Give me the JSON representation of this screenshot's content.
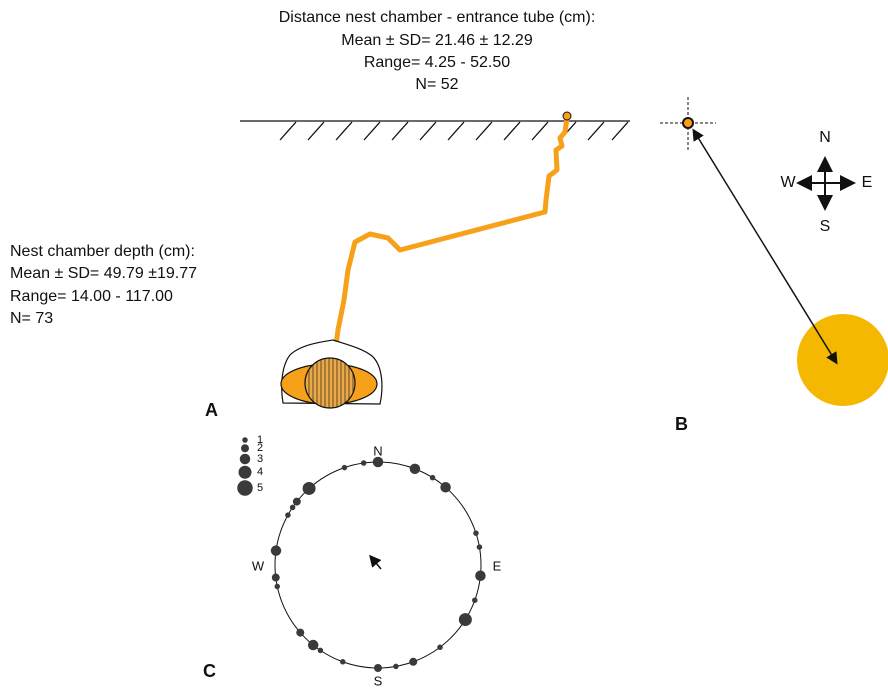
{
  "panel_a": {
    "label": "A",
    "distance_text": [
      "Distance nest chamber - entrance tube (cm):",
      "Mean ± SD= 21.46 ± 12.29",
      "Range= 4.25 - 52.50",
      "N= 52"
    ],
    "depth_text": [
      "Nest chamber depth (cm):",
      "Mean ± SD= 49.79 ±19.77",
      "Range= 14.00 - 117.00",
      "N= 73"
    ]
  },
  "panel_b": {
    "label": "B",
    "compass": {
      "north": "N",
      "south": "S",
      "east": "E",
      "west": "W"
    }
  },
  "panel_c": {
    "label": "C",
    "compass": {
      "north": "N",
      "south": "S",
      "east": "E",
      "west": "W"
    },
    "legend": [
      1,
      2,
      3,
      4,
      5
    ],
    "points": [
      {
        "angle": 0,
        "count": 3
      },
      {
        "angle": 352,
        "count": 1
      },
      {
        "angle": 341,
        "count": 1
      },
      {
        "angle": 318,
        "count": 4
      },
      {
        "angle": 308,
        "count": 2
      },
      {
        "angle": 304,
        "count": 1
      },
      {
        "angle": 299,
        "count": 1
      },
      {
        "angle": 278,
        "count": 3
      },
      {
        "angle": 263,
        "count": 2
      },
      {
        "angle": 258,
        "count": 1
      },
      {
        "angle": 229,
        "count": 2
      },
      {
        "angle": 219,
        "count": 3
      },
      {
        "angle": 214,
        "count": 1
      },
      {
        "angle": 200,
        "count": 1
      },
      {
        "angle": 180,
        "count": 2
      },
      {
        "angle": 170,
        "count": 1
      },
      {
        "angle": 160,
        "count": 2
      },
      {
        "angle": 143,
        "count": 1
      },
      {
        "angle": 122,
        "count": 4
      },
      {
        "angle": 110,
        "count": 1
      },
      {
        "angle": 96,
        "count": 3
      },
      {
        "angle": 80,
        "count": 1
      },
      {
        "angle": 72,
        "count": 1
      },
      {
        "angle": 41,
        "count": 3
      },
      {
        "angle": 32,
        "count": 1
      },
      {
        "angle": 21,
        "count": 3
      }
    ]
  }
}
